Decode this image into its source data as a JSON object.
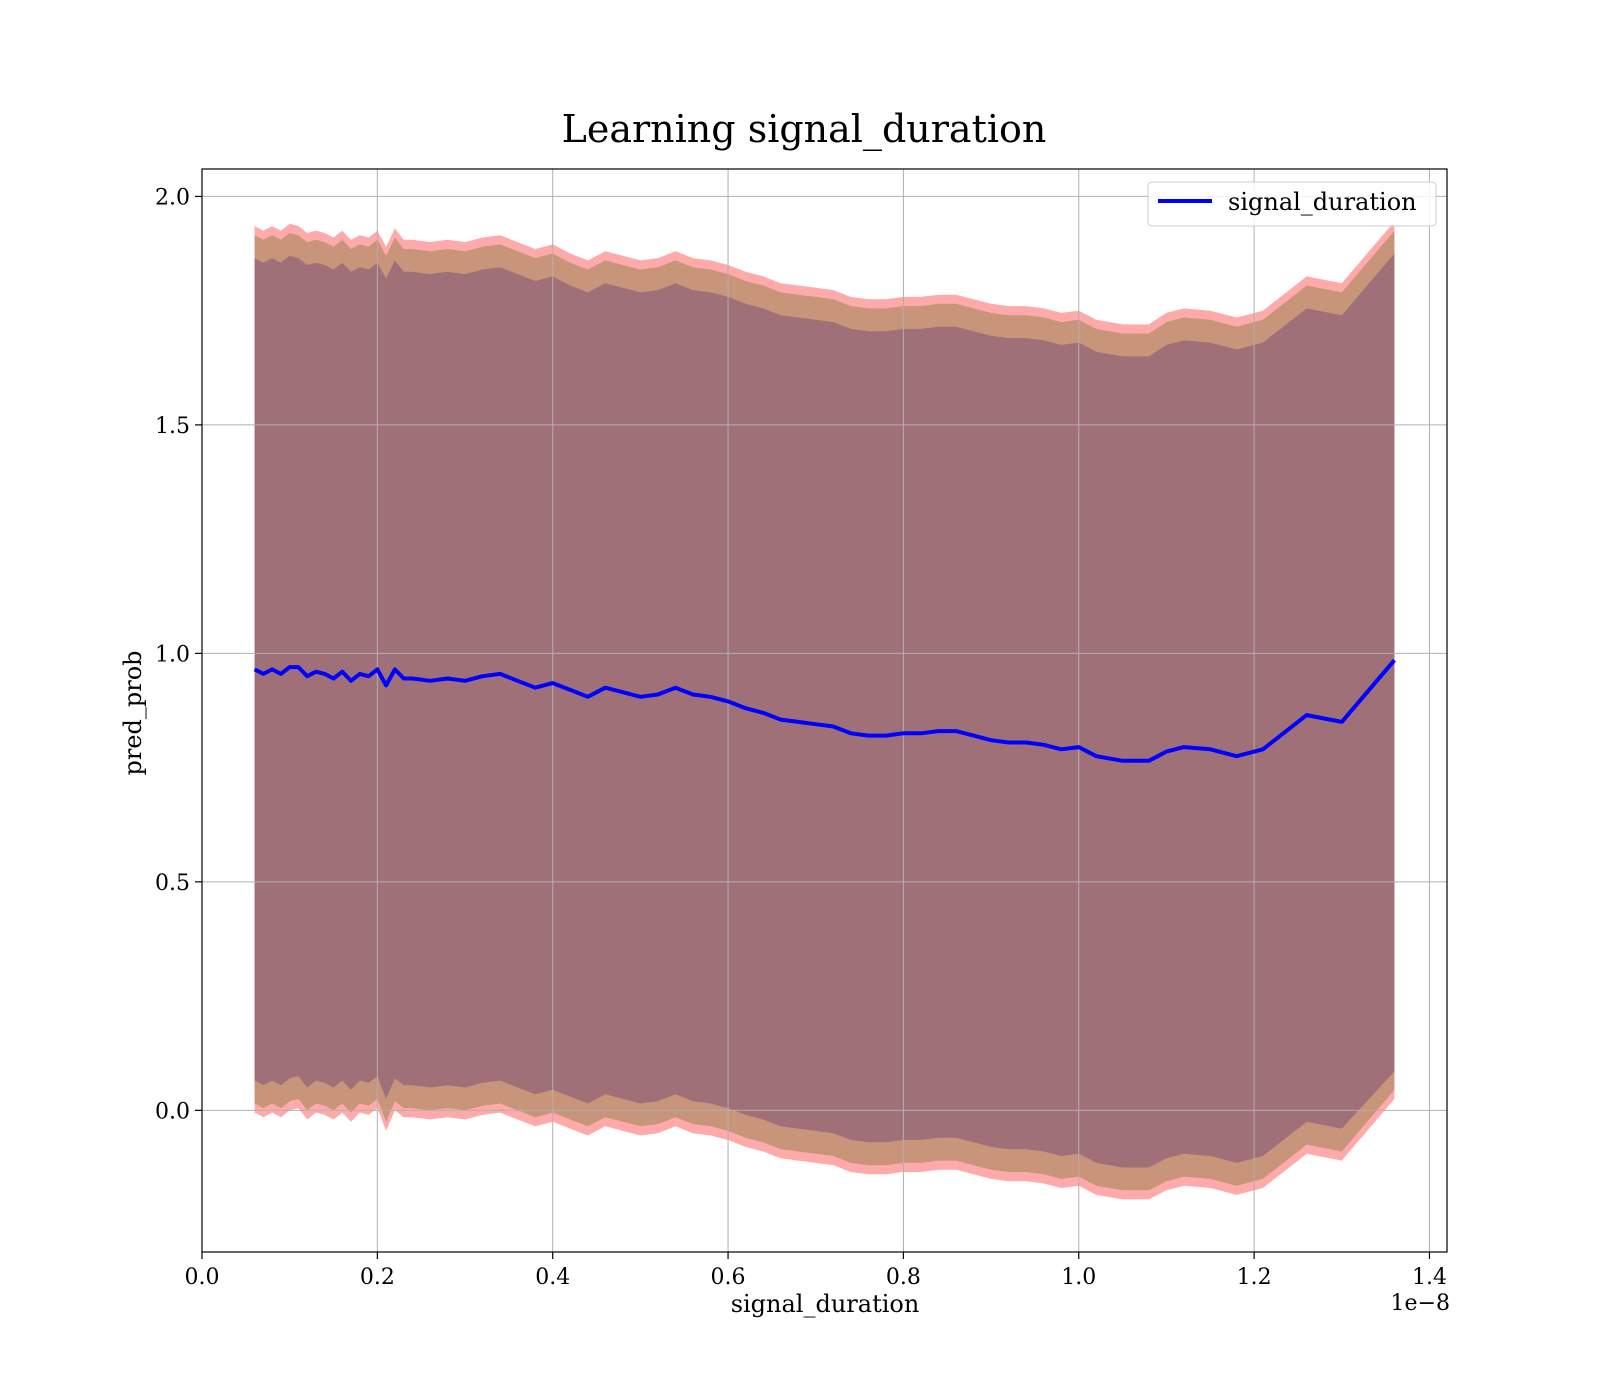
{
  "chart_data": {
    "type": "line",
    "title": "Learning signal_duration",
    "xlabel": "signal_duration",
    "ylabel": "pred_prob",
    "x_offset_label": "1e−8",
    "xlim": [
      0.0,
      1.42
    ],
    "ylim": [
      -0.31,
      2.06
    ],
    "x_ticks": [
      0.0,
      0.2,
      0.4,
      0.6,
      0.8,
      1.0,
      1.2,
      1.4
    ],
    "x_tick_labels": [
      "0.0",
      "0.2",
      "0.4",
      "0.6",
      "0.8",
      "1.0",
      "1.2",
      "1.4"
    ],
    "y_ticks": [
      0.0,
      0.5,
      1.0,
      1.5,
      2.0
    ],
    "y_tick_labels": [
      "0.0",
      "0.5",
      "1.0",
      "1.5",
      "2.0"
    ],
    "grid": true,
    "legend_position": "top-right",
    "colors": {
      "line": "#0000ff",
      "outer_band": "#ffaaaa",
      "middle_band": "#c8957a",
      "inner_band": "#a07078",
      "grid": "#b0b0b0"
    },
    "series": [
      {
        "name": "signal_duration",
        "x": [
          0.06,
          0.07,
          0.08,
          0.09,
          0.1,
          0.11,
          0.12,
          0.13,
          0.14,
          0.15,
          0.16,
          0.17,
          0.18,
          0.19,
          0.2,
          0.21,
          0.22,
          0.23,
          0.24,
          0.26,
          0.28,
          0.3,
          0.32,
          0.34,
          0.36,
          0.38,
          0.4,
          0.42,
          0.44,
          0.46,
          0.48,
          0.5,
          0.52,
          0.54,
          0.56,
          0.58,
          0.6,
          0.62,
          0.64,
          0.66,
          0.68,
          0.7,
          0.72,
          0.74,
          0.76,
          0.78,
          0.8,
          0.82,
          0.84,
          0.86,
          0.88,
          0.9,
          0.92,
          0.94,
          0.96,
          0.98,
          1.0,
          1.02,
          1.05,
          1.08,
          1.1,
          1.12,
          1.15,
          1.18,
          1.21,
          1.26,
          1.3,
          1.36
        ],
        "y": [
          0.965,
          0.955,
          0.965,
          0.955,
          0.97,
          0.97,
          0.95,
          0.96,
          0.955,
          0.945,
          0.96,
          0.94,
          0.955,
          0.95,
          0.965,
          0.93,
          0.965,
          0.945,
          0.945,
          0.94,
          0.945,
          0.94,
          0.95,
          0.955,
          0.94,
          0.925,
          0.935,
          0.92,
          0.905,
          0.925,
          0.915,
          0.905,
          0.91,
          0.925,
          0.91,
          0.905,
          0.895,
          0.88,
          0.87,
          0.855,
          0.85,
          0.845,
          0.84,
          0.825,
          0.82,
          0.82,
          0.825,
          0.825,
          0.83,
          0.83,
          0.82,
          0.81,
          0.805,
          0.805,
          0.8,
          0.79,
          0.795,
          0.775,
          0.765,
          0.765,
          0.785,
          0.795,
          0.79,
          0.775,
          0.79,
          0.865,
          0.85,
          0.985
        ]
      }
    ],
    "bands": [
      {
        "name": "outer",
        "upper": [
          1.935,
          1.925,
          1.935,
          1.925,
          1.94,
          1.935,
          1.92,
          1.925,
          1.92,
          1.91,
          1.925,
          1.905,
          1.915,
          1.91,
          1.925,
          1.89,
          1.93,
          1.905,
          1.905,
          1.9,
          1.905,
          1.9,
          1.91,
          1.915,
          1.9,
          1.885,
          1.895,
          1.875,
          1.86,
          1.88,
          1.87,
          1.86,
          1.865,
          1.88,
          1.865,
          1.86,
          1.85,
          1.835,
          1.825,
          1.81,
          1.805,
          1.8,
          1.795,
          1.78,
          1.775,
          1.775,
          1.78,
          1.78,
          1.785,
          1.785,
          1.775,
          1.765,
          1.76,
          1.76,
          1.755,
          1.745,
          1.75,
          1.73,
          1.72,
          1.72,
          1.745,
          1.755,
          1.75,
          1.735,
          1.75,
          1.825,
          1.81,
          1.945
        ],
        "lower": [
          -0.005,
          -0.015,
          -0.005,
          -0.015,
          0.0,
          0.005,
          -0.02,
          -0.005,
          -0.01,
          -0.02,
          -0.005,
          -0.025,
          -0.005,
          -0.01,
          0.005,
          -0.045,
          0.0,
          -0.015,
          -0.015,
          -0.02,
          -0.015,
          -0.02,
          -0.01,
          -0.005,
          -0.02,
          -0.035,
          -0.025,
          -0.04,
          -0.055,
          -0.035,
          -0.045,
          -0.055,
          -0.05,
          -0.035,
          -0.05,
          -0.055,
          -0.065,
          -0.08,
          -0.09,
          -0.105,
          -0.11,
          -0.115,
          -0.12,
          -0.135,
          -0.14,
          -0.14,
          -0.135,
          -0.135,
          -0.13,
          -0.13,
          -0.14,
          -0.15,
          -0.155,
          -0.155,
          -0.16,
          -0.17,
          -0.165,
          -0.185,
          -0.195,
          -0.195,
          -0.175,
          -0.165,
          -0.17,
          -0.185,
          -0.17,
          -0.095,
          -0.11,
          0.025
        ]
      },
      {
        "name": "middle",
        "upper": [
          1.915,
          1.905,
          1.915,
          1.905,
          1.92,
          1.915,
          1.9,
          1.905,
          1.9,
          1.89,
          1.905,
          1.885,
          1.895,
          1.89,
          1.905,
          1.87,
          1.91,
          1.885,
          1.885,
          1.88,
          1.885,
          1.88,
          1.89,
          1.895,
          1.88,
          1.865,
          1.875,
          1.855,
          1.84,
          1.86,
          1.85,
          1.84,
          1.845,
          1.86,
          1.845,
          1.84,
          1.83,
          1.815,
          1.805,
          1.79,
          1.785,
          1.78,
          1.775,
          1.76,
          1.755,
          1.755,
          1.76,
          1.76,
          1.765,
          1.765,
          1.755,
          1.745,
          1.74,
          1.74,
          1.735,
          1.725,
          1.73,
          1.71,
          1.7,
          1.7,
          1.725,
          1.735,
          1.73,
          1.715,
          1.73,
          1.805,
          1.79,
          1.925
        ],
        "lower": [
          0.015,
          0.005,
          0.015,
          0.005,
          0.02,
          0.025,
          0.0,
          0.015,
          0.01,
          0.0,
          0.015,
          -0.005,
          0.015,
          0.01,
          0.025,
          -0.025,
          0.02,
          0.005,
          0.005,
          0.0,
          0.005,
          0.0,
          0.01,
          0.015,
          0.0,
          -0.015,
          -0.005,
          -0.02,
          -0.035,
          -0.015,
          -0.025,
          -0.035,
          -0.03,
          -0.015,
          -0.03,
          -0.035,
          -0.045,
          -0.06,
          -0.07,
          -0.085,
          -0.09,
          -0.095,
          -0.1,
          -0.115,
          -0.12,
          -0.12,
          -0.115,
          -0.115,
          -0.11,
          -0.11,
          -0.12,
          -0.13,
          -0.135,
          -0.135,
          -0.14,
          -0.15,
          -0.145,
          -0.165,
          -0.175,
          -0.175,
          -0.155,
          -0.145,
          -0.15,
          -0.165,
          -0.15,
          -0.075,
          -0.09,
          0.045
        ]
      },
      {
        "name": "inner",
        "upper": [
          1.865,
          1.855,
          1.865,
          1.855,
          1.87,
          1.865,
          1.85,
          1.855,
          1.85,
          1.84,
          1.855,
          1.835,
          1.845,
          1.84,
          1.855,
          1.82,
          1.86,
          1.835,
          1.835,
          1.83,
          1.835,
          1.83,
          1.84,
          1.845,
          1.83,
          1.815,
          1.825,
          1.805,
          1.79,
          1.81,
          1.8,
          1.79,
          1.795,
          1.81,
          1.795,
          1.79,
          1.78,
          1.765,
          1.755,
          1.74,
          1.735,
          1.73,
          1.725,
          1.71,
          1.705,
          1.705,
          1.71,
          1.71,
          1.715,
          1.715,
          1.705,
          1.695,
          1.69,
          1.69,
          1.685,
          1.675,
          1.68,
          1.66,
          1.65,
          1.65,
          1.675,
          1.685,
          1.68,
          1.665,
          1.68,
          1.755,
          1.74,
          1.875
        ],
        "lower": [
          0.065,
          0.055,
          0.065,
          0.055,
          0.07,
          0.075,
          0.05,
          0.065,
          0.06,
          0.05,
          0.065,
          0.045,
          0.065,
          0.06,
          0.075,
          0.025,
          0.07,
          0.055,
          0.055,
          0.05,
          0.055,
          0.05,
          0.06,
          0.065,
          0.05,
          0.035,
          0.045,
          0.03,
          0.015,
          0.035,
          0.025,
          0.015,
          0.02,
          0.035,
          0.02,
          0.015,
          0.005,
          -0.01,
          -0.02,
          -0.035,
          -0.04,
          -0.045,
          -0.05,
          -0.065,
          -0.07,
          -0.07,
          -0.065,
          -0.065,
          -0.06,
          -0.06,
          -0.07,
          -0.08,
          -0.085,
          -0.085,
          -0.09,
          -0.1,
          -0.095,
          -0.115,
          -0.125,
          -0.125,
          -0.105,
          -0.095,
          -0.1,
          -0.115,
          -0.1,
          -0.025,
          -0.04,
          0.085
        ]
      }
    ]
  }
}
